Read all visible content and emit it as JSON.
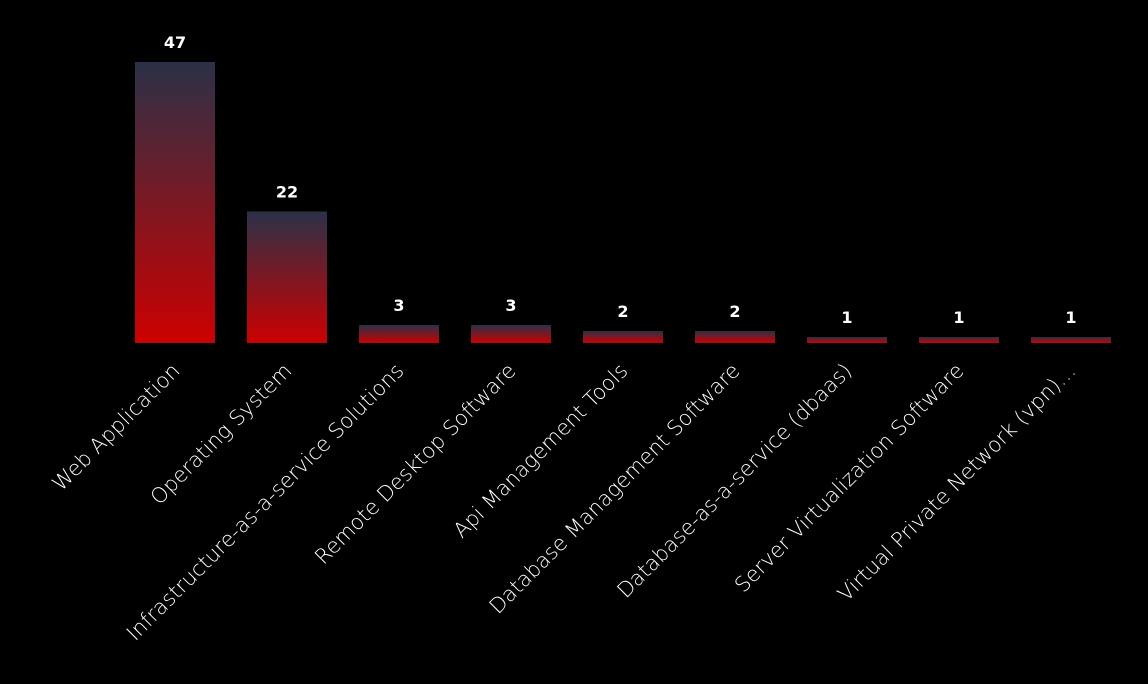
{
  "chart_data": {
    "type": "bar",
    "categories": [
      "Web Application",
      "Operating System",
      "Infrastructure-as-a-service Solutions",
      "Remote Desktop Software",
      "Api Management Tools",
      "Database Management Software",
      "Database-as-a-service (dbaas)",
      "Server Virtualization Software",
      "Virtual Private Network (vpn)…"
    ],
    "values": [
      47,
      22,
      3,
      3,
      2,
      2,
      1,
      1,
      1
    ],
    "gradient": [
      "#2a3147",
      "#cc0000"
    ]
  }
}
